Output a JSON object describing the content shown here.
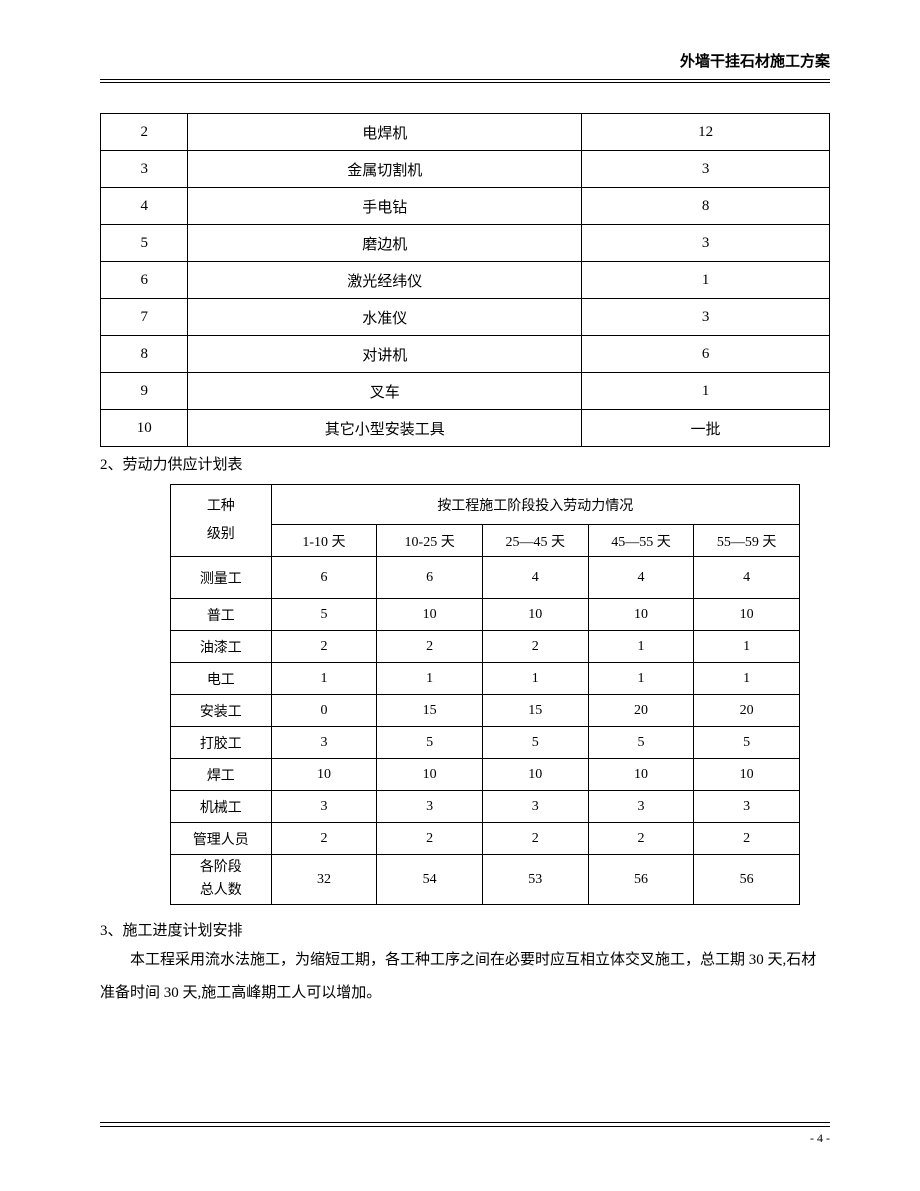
{
  "header": {
    "title": "外墙干挂石材施工方案"
  },
  "table1": {
    "rows": [
      {
        "num": "2",
        "name": "电焊机",
        "qty": "12"
      },
      {
        "num": "3",
        "name": "金属切割机",
        "qty": "3"
      },
      {
        "num": "4",
        "name": "手电钻",
        "qty": "8"
      },
      {
        "num": "5",
        "name": "磨边机",
        "qty": "3"
      },
      {
        "num": "6",
        "name": "激光经纬仪",
        "qty": "1"
      },
      {
        "num": "7",
        "name": "水准仪",
        "qty": "3"
      },
      {
        "num": "8",
        "name": "对讲机",
        "qty": "6"
      },
      {
        "num": "9",
        "name": "叉车",
        "qty": "1"
      },
      {
        "num": "10",
        "name": "其它小型安装工具",
        "qty": "一批"
      }
    ]
  },
  "section2": {
    "title": "2、劳动力供应计划表"
  },
  "table2": {
    "header_col": "工种\n级别",
    "header_span": "按工程施工阶段投入劳动力情况",
    "periods": [
      "1-10 天",
      "10-25 天",
      "25—45 天",
      "45—55 天",
      "55—59 天"
    ],
    "rows": [
      {
        "label": "测量工",
        "values": [
          "6",
          "6",
          "4",
          "4",
          "4"
        ],
        "tall": true
      },
      {
        "label": "普工",
        "values": [
          "5",
          "10",
          "10",
          "10",
          "10"
        ]
      },
      {
        "label": "油漆工",
        "values": [
          "2",
          "2",
          "2",
          "1",
          "1"
        ]
      },
      {
        "label": "电工",
        "values": [
          "1",
          "1",
          "1",
          "1",
          "1"
        ]
      },
      {
        "label": "安装工",
        "values": [
          "0",
          "15",
          "15",
          "20",
          "20"
        ]
      },
      {
        "label": "打胶工",
        "values": [
          "3",
          "5",
          "5",
          "5",
          "5"
        ]
      },
      {
        "label": "焊工",
        "values": [
          "10",
          "10",
          "10",
          "10",
          "10"
        ]
      },
      {
        "label": "机械工",
        "values": [
          "3",
          "3",
          "3",
          "3",
          "3"
        ]
      },
      {
        "label": "管理人员",
        "values": [
          "2",
          "2",
          "2",
          "2",
          "2"
        ]
      }
    ],
    "total": {
      "label": "各阶段\n总人数",
      "values": [
        "32",
        "54",
        "53",
        "56",
        "56"
      ]
    }
  },
  "section3": {
    "title": "3、施工进度计划安排",
    "body": "本工程采用流水法施工，为缩短工期，各工种工序之间在必要时应互相立体交叉施工，总工期 30 天,石材准备时间 30 天,施工高峰期工人可以增加。"
  },
  "footer": {
    "page": "- 4 -"
  }
}
